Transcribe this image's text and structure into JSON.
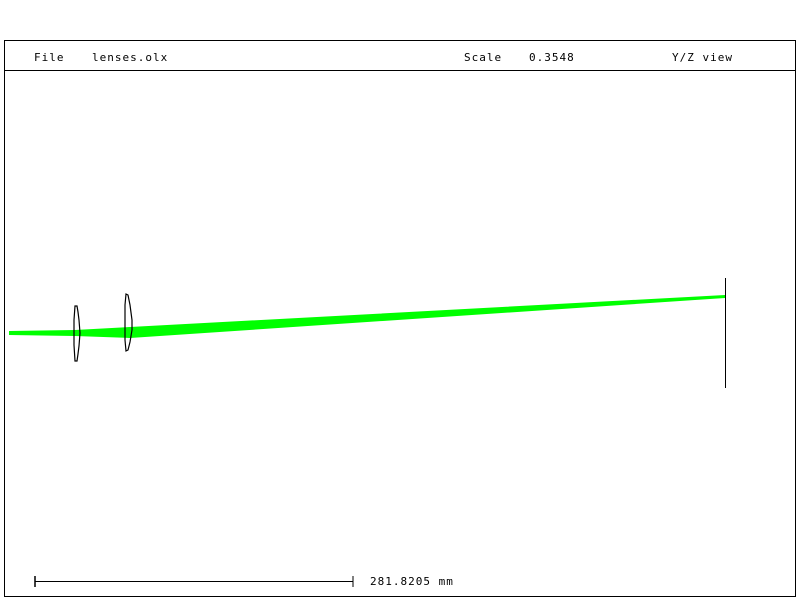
{
  "header": {
    "file_label": "File",
    "file_name": "lenses.olx",
    "scale_label": "Scale",
    "scale_value": "0.3548",
    "view_label": "Y/Z view"
  },
  "scale_bar": {
    "length_label": "281.8205 mm"
  },
  "colors": {
    "ray_bundle": "#00ff00",
    "lens_outline": "#000000",
    "frame": "#000000"
  }
}
